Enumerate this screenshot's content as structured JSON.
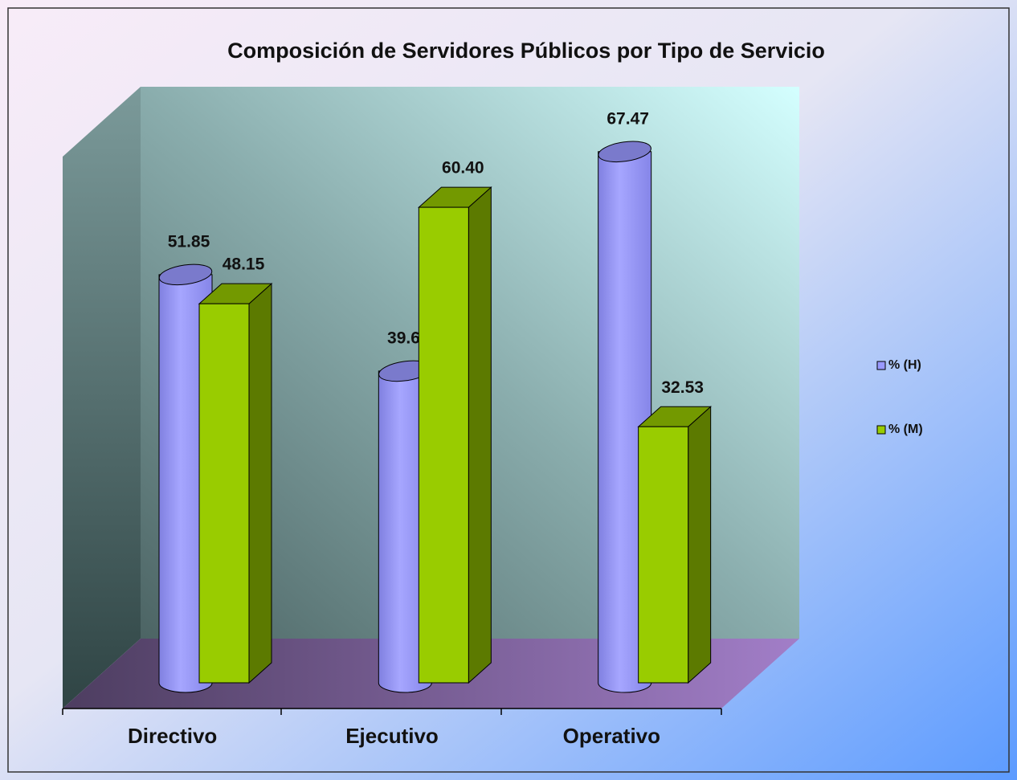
{
  "chart_data": {
    "type": "bar3d",
    "title": "Composición de Servidores Públicos por Tipo de Servicio",
    "categories": [
      "Directivo",
      "Ejecutivo",
      "Operativo"
    ],
    "series": [
      {
        "name": "% (H)",
        "color": "#9999ff",
        "values": [
          51.85,
          39.6,
          67.47
        ],
        "value_labels": [
          "51.85",
          "39.60",
          "67.47"
        ]
      },
      {
        "name": "% (M)",
        "color": "#99cc00",
        "values": [
          48.15,
          60.4,
          32.53
        ],
        "value_labels": [
          "48.15",
          "60.40",
          "32.53"
        ]
      }
    ],
    "ylim": [
      0,
      70
    ],
    "legend": "right"
  }
}
